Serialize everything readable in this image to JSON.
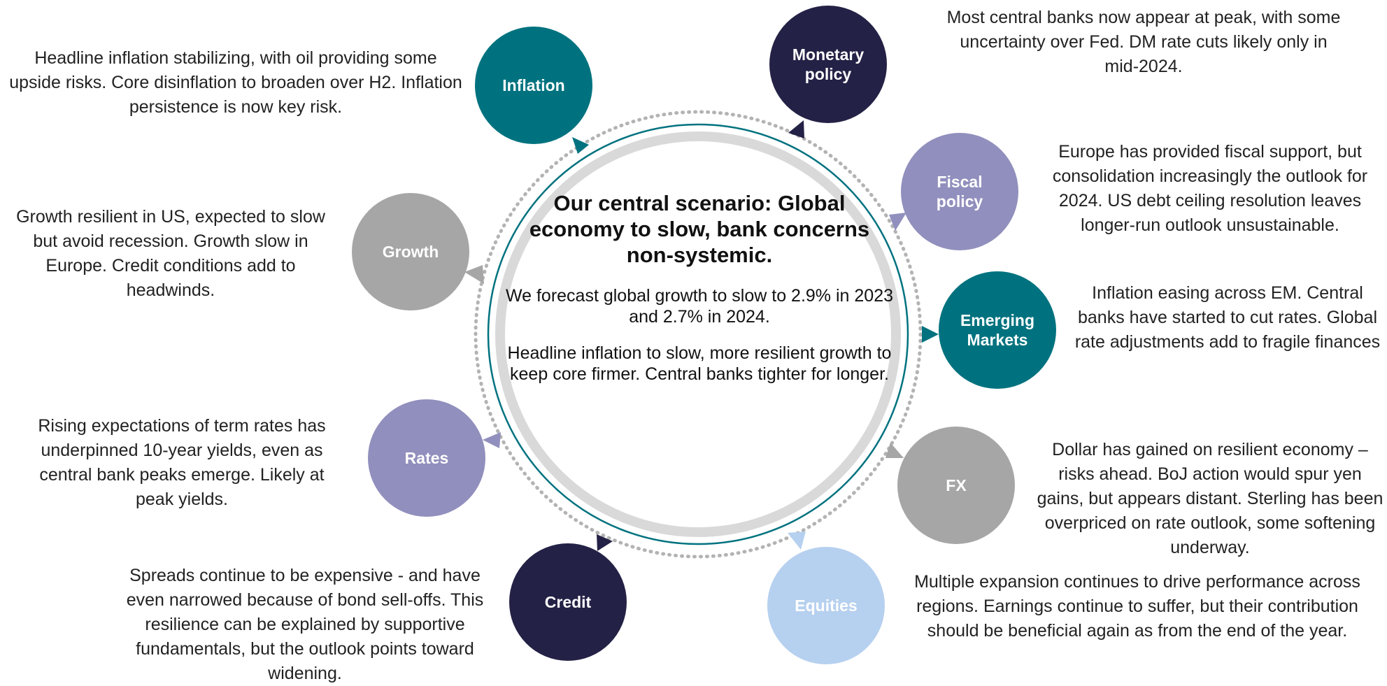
{
  "center": {
    "title": "Our central scenario: Global economy to slow, bank concerns non-systemic.",
    "body_1": "We forecast global growth to slow to 2.9% in 2023 and 2.7% in 2024.",
    "body_2": "Headline inflation to slow, more resilient growth to keep core firmer. Central banks tighter for longer."
  },
  "colors": {
    "teal": "#00727f",
    "navy": "#232145",
    "lavender": "#918fbd",
    "gray": "#a6a6a6",
    "light_blue": "#b6d0ef",
    "ring_gray": "#d9d9d9"
  },
  "nodes": [
    {
      "id": "inflation",
      "label": "Inflation",
      "color": "#00727f",
      "text": "Headline inflation stabilizing, with oil providing some upside risks. Core disinflation to broaden over H2. Inflation persistence is now key risk."
    },
    {
      "id": "monetary-policy",
      "label": "Monetary policy",
      "color": "#232145",
      "text": "Most central banks now appear at peak, with some uncertainty over Fed. DM rate cuts likely only in mid-2024."
    },
    {
      "id": "fiscal-policy",
      "label": "Fiscal policy",
      "color": "#918fbd",
      "text": "Europe has provided fiscal support, but consolidation increasingly the outlook for 2024. US debt ceiling resolution leaves longer-run outlook unsustainable."
    },
    {
      "id": "emerging-markets",
      "label": "Emerging Markets",
      "color": "#00727f",
      "text": "Inflation easing across EM. Central banks have started to cut rates. Global rate adjustments add to fragile finances"
    },
    {
      "id": "fx",
      "label": "FX",
      "color": "#a6a6a6",
      "text": "Dollar has gained on resilient economy – risks ahead. BoJ action would spur yen gains, but appears distant. Sterling has been overpriced on rate outlook, some softening underway."
    },
    {
      "id": "equities",
      "label": "Equities",
      "color": "#b6d0ef",
      "text": "Multiple expansion continues to drive performance across regions. Earnings continue to suffer, but their contribution should be beneficial again as from the end of the year."
    },
    {
      "id": "credit",
      "label": "Credit",
      "color": "#232145",
      "text": "Spreads continue to be expensive - and have even narrowed because of bond sell-offs. This resilience can be explained by supportive fundamentals, but the outlook points toward widening."
    },
    {
      "id": "rates",
      "label": "Rates",
      "color": "#918fbd",
      "text": "Rising expectations of term rates has underpinned 10-year yields, even as central bank peaks emerge. Likely at peak yields."
    },
    {
      "id": "growth",
      "label": "Growth",
      "color": "#a6a6a6",
      "text": "Growth resilient in US, expected to slow but avoid recession. Growth slow in Europe. Credit conditions add to headwinds."
    }
  ]
}
